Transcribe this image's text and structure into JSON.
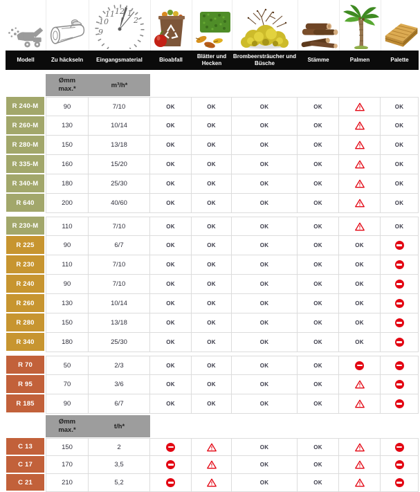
{
  "table": {
    "columns": [
      {
        "label": "Modell",
        "icon": "chipper-machine-icon"
      },
      {
        "label": "Zu häckseln",
        "icon": "log-sketch-icon"
      },
      {
        "label": "Eingangsmaterial",
        "icon": "clock-icon"
      },
      {
        "label": "Bioabfall",
        "icon": "compost-bin-icon"
      },
      {
        "label": "Blätter und Hecken",
        "icon": "hedge-leaves-icon"
      },
      {
        "label": "Brombeersträucher und Büsche",
        "icon": "bush-icon"
      },
      {
        "label": "Stämme",
        "icon": "logs-icon"
      },
      {
        "label": "Palmen",
        "icon": "palm-tree-icon"
      },
      {
        "label": "Palette",
        "icon": "pallet-icon"
      }
    ],
    "legend": {
      "ok_label": "OK",
      "warn_symbol": "warning-triangle",
      "forbidden_symbol": "no-entry-sign"
    },
    "sections": [
      {
        "subheader": {
          "diameter_line1": "Ømm",
          "diameter_line2": "max.*",
          "rate_label": "m³/h*"
        },
        "rows": [
          {
            "model": "R 240-M",
            "tone": "green",
            "diameter": "90",
            "rate": "7/10",
            "cells": [
              "ok",
              "ok",
              "ok",
              "ok",
              "warn",
              "ok"
            ]
          },
          {
            "model": "R 260-M",
            "tone": "green",
            "diameter": "130",
            "rate": "10/14",
            "cells": [
              "ok",
              "ok",
              "ok",
              "ok",
              "warn",
              "ok"
            ]
          },
          {
            "model": "R 280-M",
            "tone": "green",
            "diameter": "150",
            "rate": "13/18",
            "cells": [
              "ok",
              "ok",
              "ok",
              "ok",
              "warn",
              "ok"
            ]
          },
          {
            "model": "R 335-M",
            "tone": "green",
            "diameter": "160",
            "rate": "15/20",
            "cells": [
              "ok",
              "ok",
              "ok",
              "ok",
              "warn",
              "ok"
            ]
          },
          {
            "model": "R 340-M",
            "tone": "green",
            "diameter": "180",
            "rate": "25/30",
            "cells": [
              "ok",
              "ok",
              "ok",
              "ok",
              "warn",
              "ok"
            ]
          },
          {
            "model": "R 640",
            "tone": "green",
            "diameter": "200",
            "rate": "40/60",
            "cells": [
              "ok",
              "ok",
              "ok",
              "ok",
              "warn",
              "ok"
            ]
          }
        ]
      },
      {
        "rows": [
          {
            "model": "R 230-M",
            "tone": "green",
            "diameter": "110",
            "rate": "7/10",
            "cells": [
              "ok",
              "ok",
              "ok",
              "ok",
              "warn",
              "ok"
            ]
          },
          {
            "model": "R 225",
            "tone": "gold",
            "diameter": "90",
            "rate": "6/7",
            "cells": [
              "ok",
              "ok",
              "ok",
              "ok",
              "ok",
              "no"
            ]
          },
          {
            "model": "R 230",
            "tone": "gold",
            "diameter": "110",
            "rate": "7/10",
            "cells": [
              "ok",
              "ok",
              "ok",
              "ok",
              "ok",
              "no"
            ]
          },
          {
            "model": "R 240",
            "tone": "gold",
            "diameter": "90",
            "rate": "7/10",
            "cells": [
              "ok",
              "ok",
              "ok",
              "ok",
              "ok",
              "no"
            ]
          },
          {
            "model": "R 260",
            "tone": "gold",
            "diameter": "130",
            "rate": "10/14",
            "cells": [
              "ok",
              "ok",
              "ok",
              "ok",
              "ok",
              "no"
            ]
          },
          {
            "model": "R 280",
            "tone": "gold",
            "diameter": "150",
            "rate": "13/18",
            "cells": [
              "ok",
              "ok",
              "ok",
              "ok",
              "ok",
              "no"
            ]
          },
          {
            "model": "R 340",
            "tone": "gold",
            "diameter": "180",
            "rate": "25/30",
            "cells": [
              "ok",
              "ok",
              "ok",
              "ok",
              "ok",
              "no"
            ]
          }
        ]
      },
      {
        "rows": [
          {
            "model": "R 70",
            "tone": "orange",
            "diameter": "50",
            "rate": "2/3",
            "cells": [
              "ok",
              "ok",
              "ok",
              "ok",
              "no",
              "no"
            ]
          },
          {
            "model": "R 95",
            "tone": "orange",
            "diameter": "70",
            "rate": "3/6",
            "cells": [
              "ok",
              "ok",
              "ok",
              "ok",
              "warn",
              "no"
            ]
          },
          {
            "model": "R 185",
            "tone": "orange",
            "diameter": "90",
            "rate": "6/7",
            "cells": [
              "ok",
              "ok",
              "ok",
              "ok",
              "warn",
              "no"
            ]
          }
        ]
      },
      {
        "tight": true,
        "compact": true,
        "subheader": {
          "diameter_line1": "Ømm",
          "diameter_line2": "max.*",
          "rate_label": "t/h*"
        },
        "rows": [
          {
            "model": "C 13",
            "tone": "orange",
            "diameter": "150",
            "rate": "2",
            "cells": [
              "no",
              "warn",
              "ok",
              "ok",
              "warn",
              "no"
            ]
          },
          {
            "model": "C 17",
            "tone": "orange",
            "diameter": "170",
            "rate": "3,5",
            "cells": [
              "no",
              "warn",
              "ok",
              "ok",
              "warn",
              "no"
            ]
          },
          {
            "model": "C 21",
            "tone": "orange",
            "diameter": "210",
            "rate": "5,2",
            "cells": [
              "no",
              "warn",
              "ok",
              "ok",
              "warn",
              "no"
            ]
          }
        ]
      }
    ]
  },
  "colors": {
    "model_green": "#a2a76b",
    "model_gold": "#c79530",
    "model_orange": "#c2613a",
    "accent_red": "#e30613",
    "header_bg": "#0b0b0b",
    "subheader_bg": "#9d9d9d",
    "grid_border": "#dcdcdc"
  }
}
